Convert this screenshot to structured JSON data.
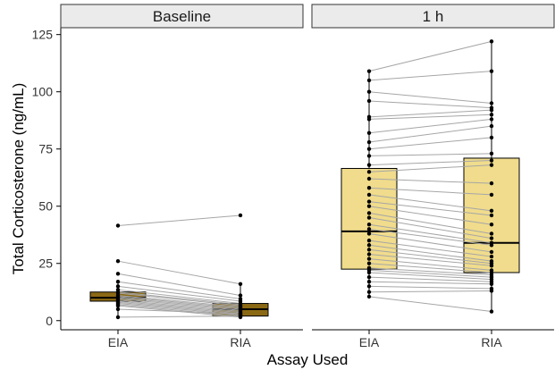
{
  "chart_data": {
    "type": "boxplot",
    "xlabel": "Assay Used",
    "ylabel": "Total Corticosterone (ng/mL)",
    "ylim": [
      -4,
      128
    ],
    "yticks": [
      0,
      25,
      50,
      75,
      100,
      125
    ],
    "categories": [
      "EIA",
      "RIA"
    ],
    "grid": false,
    "paired_lines": true,
    "facets": [
      {
        "label": "Baseline",
        "box_fill": "#8b6914",
        "boxes": [
          {
            "category": "EIA",
            "q1": 8.5,
            "median": 10,
            "q3": 12.5,
            "whisker_low": 1.5,
            "whisker_high": 17
          },
          {
            "category": "RIA",
            "q1": 2,
            "median": 5,
            "q3": 7.5,
            "whisker_low": 1.5,
            "whisker_high": 15.5
          }
        ],
        "pairs": [
          [
            41.5,
            46
          ],
          [
            26,
            16
          ],
          [
            20.5,
            11
          ],
          [
            17,
            9.5
          ],
          [
            15,
            8.5
          ],
          [
            13.5,
            7.5
          ],
          [
            12.5,
            7
          ],
          [
            12,
            6.5
          ],
          [
            11,
            6
          ],
          [
            10.5,
            5.5
          ],
          [
            10,
            5
          ],
          [
            9.5,
            4.5
          ],
          [
            9,
            4
          ],
          [
            8.5,
            3.5
          ],
          [
            8,
            3
          ],
          [
            7.5,
            2.5
          ],
          [
            7,
            2
          ],
          [
            6.5,
            1.5
          ],
          [
            5,
            3
          ],
          [
            1.5,
            2
          ]
        ]
      },
      {
        "label": "1 h",
        "box_fill": "#f0dc8c",
        "boxes": [
          {
            "category": "EIA",
            "q1": 22.5,
            "median": 39,
            "q3": 66.5,
            "whisker_low": 10.5,
            "whisker_high": 109
          },
          {
            "category": "RIA",
            "q1": 21,
            "median": 34,
            "q3": 71,
            "whisker_low": 4,
            "whisker_high": 122
          }
        ],
        "pairs": [
          [
            109,
            122
          ],
          [
            105,
            109
          ],
          [
            100,
            95
          ],
          [
            96,
            93
          ],
          [
            89,
            92
          ],
          [
            88,
            90
          ],
          [
            82,
            88
          ],
          [
            78,
            85
          ],
          [
            75,
            80
          ],
          [
            72,
            73
          ],
          [
            68,
            70
          ],
          [
            65,
            68
          ],
          [
            62,
            60
          ],
          [
            58,
            55
          ],
          [
            55,
            48
          ],
          [
            52,
            46
          ],
          [
            50,
            42
          ],
          [
            47,
            38
          ],
          [
            45,
            36
          ],
          [
            42,
            34
          ],
          [
            40,
            33
          ],
          [
            38,
            30
          ],
          [
            35,
            28
          ],
          [
            33,
            26
          ],
          [
            31,
            25
          ],
          [
            29,
            24
          ],
          [
            27,
            22
          ],
          [
            25,
            21
          ],
          [
            23,
            20
          ],
          [
            22,
            19
          ],
          [
            21,
            18
          ],
          [
            19,
            17
          ],
          [
            17,
            16
          ],
          [
            15,
            14
          ],
          [
            12.5,
            13
          ],
          [
            10.5,
            4
          ]
        ]
      }
    ]
  }
}
